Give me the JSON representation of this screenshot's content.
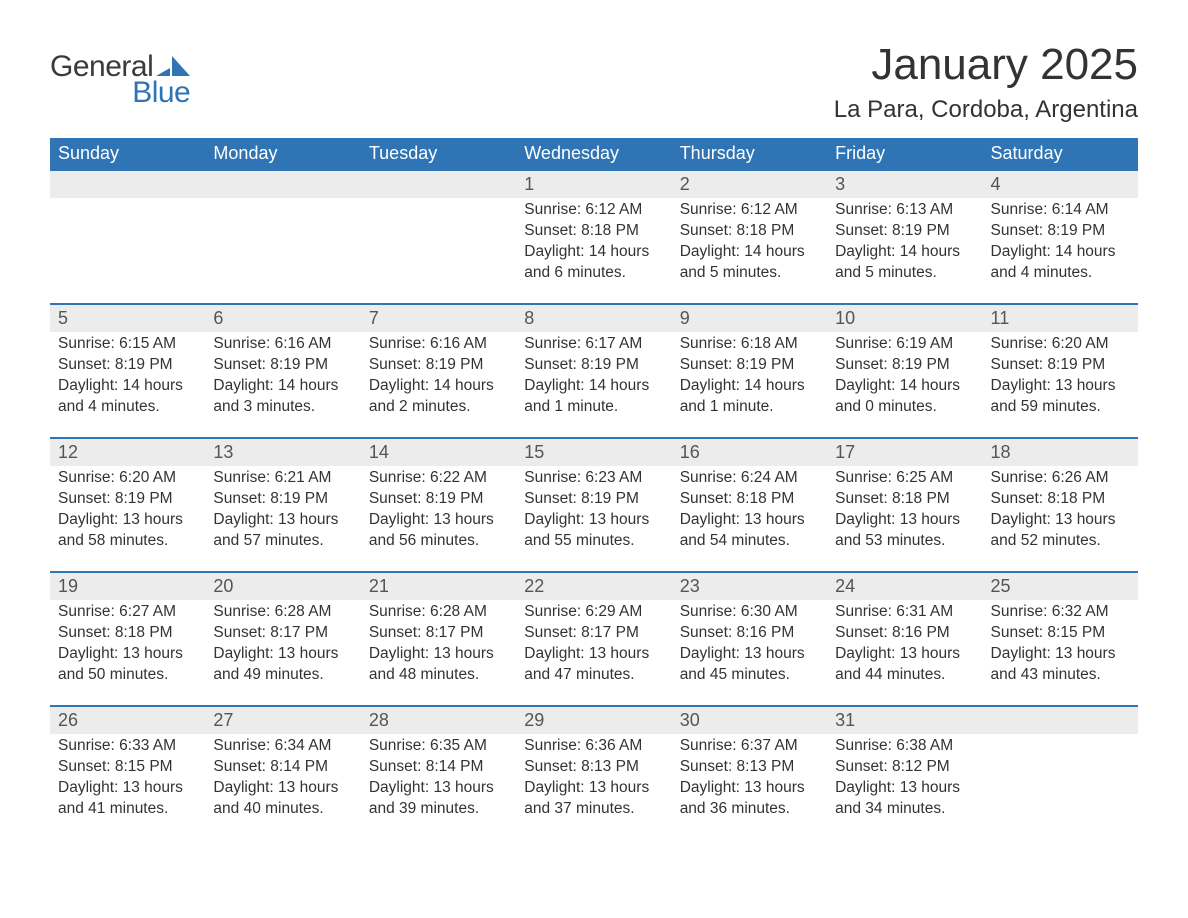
{
  "brand": {
    "word1": "General",
    "word2": "Blue",
    "accent_color": "#2f74b5",
    "text_color": "#3a3a3a"
  },
  "header": {
    "month_title": "January 2025",
    "location": "La Para, Cordoba, Argentina"
  },
  "calendar": {
    "day_labels": [
      "Sunday",
      "Monday",
      "Tuesday",
      "Wednesday",
      "Thursday",
      "Friday",
      "Saturday"
    ],
    "header_bg": "#2f74b5",
    "header_fg": "#ffffff",
    "row_accent": "#2f74b5",
    "daynum_bg": "#ececec",
    "weeks": [
      [
        null,
        null,
        null,
        {
          "n": "1",
          "sunrise": "Sunrise: 6:12 AM",
          "sunset": "Sunset: 8:18 PM",
          "daylight": "Daylight: 14 hours and 6 minutes."
        },
        {
          "n": "2",
          "sunrise": "Sunrise: 6:12 AM",
          "sunset": "Sunset: 8:18 PM",
          "daylight": "Daylight: 14 hours and 5 minutes."
        },
        {
          "n": "3",
          "sunrise": "Sunrise: 6:13 AM",
          "sunset": "Sunset: 8:19 PM",
          "daylight": "Daylight: 14 hours and 5 minutes."
        },
        {
          "n": "4",
          "sunrise": "Sunrise: 6:14 AM",
          "sunset": "Sunset: 8:19 PM",
          "daylight": "Daylight: 14 hours and 4 minutes."
        }
      ],
      [
        {
          "n": "5",
          "sunrise": "Sunrise: 6:15 AM",
          "sunset": "Sunset: 8:19 PM",
          "daylight": "Daylight: 14 hours and 4 minutes."
        },
        {
          "n": "6",
          "sunrise": "Sunrise: 6:16 AM",
          "sunset": "Sunset: 8:19 PM",
          "daylight": "Daylight: 14 hours and 3 minutes."
        },
        {
          "n": "7",
          "sunrise": "Sunrise: 6:16 AM",
          "sunset": "Sunset: 8:19 PM",
          "daylight": "Daylight: 14 hours and 2 minutes."
        },
        {
          "n": "8",
          "sunrise": "Sunrise: 6:17 AM",
          "sunset": "Sunset: 8:19 PM",
          "daylight": "Daylight: 14 hours and 1 minute."
        },
        {
          "n": "9",
          "sunrise": "Sunrise: 6:18 AM",
          "sunset": "Sunset: 8:19 PM",
          "daylight": "Daylight: 14 hours and 1 minute."
        },
        {
          "n": "10",
          "sunrise": "Sunrise: 6:19 AM",
          "sunset": "Sunset: 8:19 PM",
          "daylight": "Daylight: 14 hours and 0 minutes."
        },
        {
          "n": "11",
          "sunrise": "Sunrise: 6:20 AM",
          "sunset": "Sunset: 8:19 PM",
          "daylight": "Daylight: 13 hours and 59 minutes."
        }
      ],
      [
        {
          "n": "12",
          "sunrise": "Sunrise: 6:20 AM",
          "sunset": "Sunset: 8:19 PM",
          "daylight": "Daylight: 13 hours and 58 minutes."
        },
        {
          "n": "13",
          "sunrise": "Sunrise: 6:21 AM",
          "sunset": "Sunset: 8:19 PM",
          "daylight": "Daylight: 13 hours and 57 minutes."
        },
        {
          "n": "14",
          "sunrise": "Sunrise: 6:22 AM",
          "sunset": "Sunset: 8:19 PM",
          "daylight": "Daylight: 13 hours and 56 minutes."
        },
        {
          "n": "15",
          "sunrise": "Sunrise: 6:23 AM",
          "sunset": "Sunset: 8:19 PM",
          "daylight": "Daylight: 13 hours and 55 minutes."
        },
        {
          "n": "16",
          "sunrise": "Sunrise: 6:24 AM",
          "sunset": "Sunset: 8:18 PM",
          "daylight": "Daylight: 13 hours and 54 minutes."
        },
        {
          "n": "17",
          "sunrise": "Sunrise: 6:25 AM",
          "sunset": "Sunset: 8:18 PM",
          "daylight": "Daylight: 13 hours and 53 minutes."
        },
        {
          "n": "18",
          "sunrise": "Sunrise: 6:26 AM",
          "sunset": "Sunset: 8:18 PM",
          "daylight": "Daylight: 13 hours and 52 minutes."
        }
      ],
      [
        {
          "n": "19",
          "sunrise": "Sunrise: 6:27 AM",
          "sunset": "Sunset: 8:18 PM",
          "daylight": "Daylight: 13 hours and 50 minutes."
        },
        {
          "n": "20",
          "sunrise": "Sunrise: 6:28 AM",
          "sunset": "Sunset: 8:17 PM",
          "daylight": "Daylight: 13 hours and 49 minutes."
        },
        {
          "n": "21",
          "sunrise": "Sunrise: 6:28 AM",
          "sunset": "Sunset: 8:17 PM",
          "daylight": "Daylight: 13 hours and 48 minutes."
        },
        {
          "n": "22",
          "sunrise": "Sunrise: 6:29 AM",
          "sunset": "Sunset: 8:17 PM",
          "daylight": "Daylight: 13 hours and 47 minutes."
        },
        {
          "n": "23",
          "sunrise": "Sunrise: 6:30 AM",
          "sunset": "Sunset: 8:16 PM",
          "daylight": "Daylight: 13 hours and 45 minutes."
        },
        {
          "n": "24",
          "sunrise": "Sunrise: 6:31 AM",
          "sunset": "Sunset: 8:16 PM",
          "daylight": "Daylight: 13 hours and 44 minutes."
        },
        {
          "n": "25",
          "sunrise": "Sunrise: 6:32 AM",
          "sunset": "Sunset: 8:15 PM",
          "daylight": "Daylight: 13 hours and 43 minutes."
        }
      ],
      [
        {
          "n": "26",
          "sunrise": "Sunrise: 6:33 AM",
          "sunset": "Sunset: 8:15 PM",
          "daylight": "Daylight: 13 hours and 41 minutes."
        },
        {
          "n": "27",
          "sunrise": "Sunrise: 6:34 AM",
          "sunset": "Sunset: 8:14 PM",
          "daylight": "Daylight: 13 hours and 40 minutes."
        },
        {
          "n": "28",
          "sunrise": "Sunrise: 6:35 AM",
          "sunset": "Sunset: 8:14 PM",
          "daylight": "Daylight: 13 hours and 39 minutes."
        },
        {
          "n": "29",
          "sunrise": "Sunrise: 6:36 AM",
          "sunset": "Sunset: 8:13 PM",
          "daylight": "Daylight: 13 hours and 37 minutes."
        },
        {
          "n": "30",
          "sunrise": "Sunrise: 6:37 AM",
          "sunset": "Sunset: 8:13 PM",
          "daylight": "Daylight: 13 hours and 36 minutes."
        },
        {
          "n": "31",
          "sunrise": "Sunrise: 6:38 AM",
          "sunset": "Sunset: 8:12 PM",
          "daylight": "Daylight: 13 hours and 34 minutes."
        },
        null
      ]
    ]
  }
}
